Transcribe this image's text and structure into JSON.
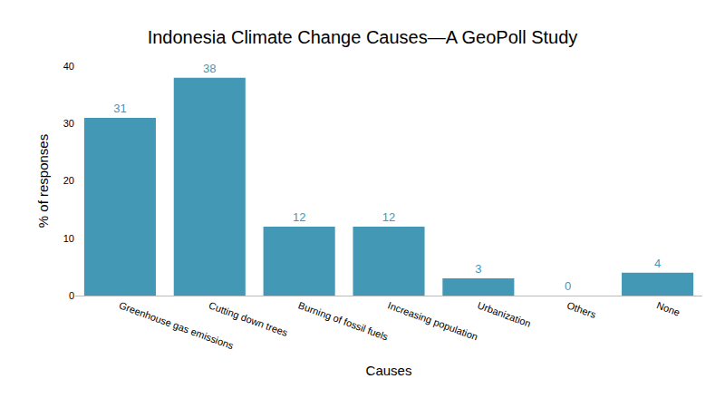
{
  "chart_data": {
    "type": "bar",
    "title": "Indonesia Climate Change Causes—A GeoPoll Study",
    "x_label": "Causes",
    "y_label": "% of responses",
    "categories": [
      "Greenhouse gas emissions",
      "Cutting down trees",
      "Burning of fossil fuels",
      "Increasing population",
      "Urbanization",
      "Others",
      "None"
    ],
    "values": [
      31,
      38,
      12,
      12,
      3,
      0,
      4
    ],
    "color": "#4398b5",
    "ylim": [
      0,
      40
    ],
    "yticks": [
      0,
      10,
      20,
      30,
      40
    ],
    "grid": false,
    "data_labels": true
  }
}
